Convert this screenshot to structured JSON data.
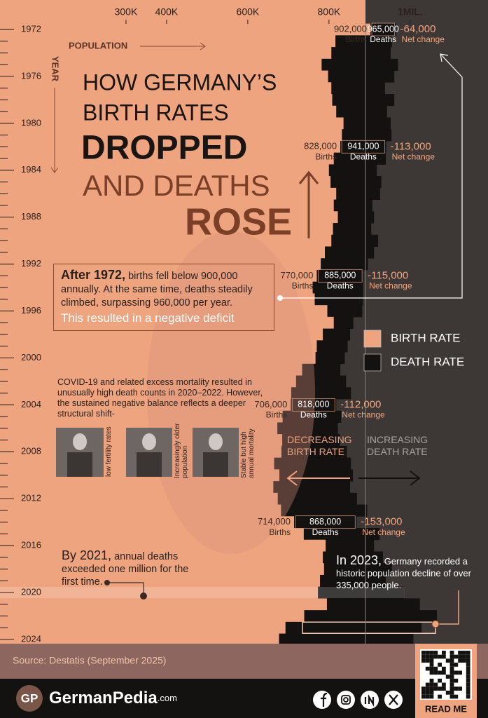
{
  "chart_data": {
    "type": "bar",
    "orientation": "horizontal",
    "title": [
      "HOW GERMANY’S",
      "BIRTH RATES",
      "DROPPED",
      "AND DEATHS",
      "ROSE"
    ],
    "x_label": "POPULATION",
    "y_label": "YEAR",
    "categories": [
      "1972",
      null,
      null,
      null,
      "1976",
      null,
      null,
      null,
      "1980",
      null,
      null,
      null,
      "1984",
      null,
      null,
      null,
      "1988",
      null,
      null,
      null,
      "1992",
      null,
      null,
      null,
      "1996",
      null,
      null,
      null,
      "2000",
      null,
      null,
      null,
      "2004",
      null,
      null,
      null,
      "2008",
      null,
      null,
      null,
      "2012",
      null,
      null,
      null,
      "2016",
      null,
      null,
      null,
      "2020",
      null,
      null,
      null,
      "2024"
    ],
    "xlim": [
      0,
      1190000
    ],
    "xticks": [
      {
        "value": 300000,
        "label": "300K"
      },
      {
        "value": 400000,
        "label": "400K"
      },
      {
        "value": 600000,
        "label": "600K"
      },
      {
        "value": 800000,
        "label": "800K"
      },
      {
        "value": 1000000,
        "label": "1MIL."
      }
    ],
    "series": [
      {
        "name": "BIRTH RATE",
        "unit_label": "Births",
        "color": "#eea47f",
        "values": [
          902000,
          816000,
          806000,
          782000,
          798000,
          806000,
          808000,
          818000,
          836000,
          832000,
          828000,
          812000,
          800000,
          804000,
          818000,
          812000,
          822000,
          810000,
          806000,
          790000,
          780000,
          770000,
          760000,
          765000,
          796000,
          812000,
          785000,
          770000,
          767000,
          734000,
          719000,
          707000,
          706000,
          686000,
          673000,
          685000,
          683000,
          665000,
          678000,
          663000,
          674000,
          682000,
          714000,
          738000,
          792000,
          785000,
          788000,
          778000,
          773000,
          795000,
          739000,
          693000,
          677000
        ],
        "value_labels": [
          "902,000",
          null,
          null,
          null,
          null,
          null,
          null,
          null,
          null,
          null,
          "828,000",
          null,
          null,
          null,
          null,
          null,
          null,
          null,
          null,
          null,
          null,
          "770,000",
          null,
          null,
          null,
          null,
          null,
          null,
          null,
          null,
          null,
          null,
          "706,000",
          null,
          null,
          null,
          null,
          null,
          null,
          null,
          null,
          null,
          "714,000",
          null,
          null,
          null,
          null,
          null,
          null,
          null,
          null,
          null,
          null
        ]
      },
      {
        "name": "DEATH RATE",
        "unit_label": "Deaths",
        "color": "#141111",
        "values": [
          965000,
          955000,
          952000,
          970000,
          961000,
          938000,
          961000,
          943000,
          952000,
          954000,
          941000,
          940000,
          918000,
          929000,
          926000,
          907000,
          911000,
          904000,
          921000,
          911000,
          896000,
          885000,
          884000,
          884000,
          882000,
          860000,
          852000,
          846000,
          839000,
          828000,
          842000,
          854000,
          818000,
          830000,
          822000,
          827000,
          844000,
          854000,
          859000,
          852000,
          869000,
          894000,
          868000,
          925000,
          911000,
          933000,
          955000,
          940000,
          986000,
          1024000,
          1066000,
          1028000,
          1008000
        ],
        "value_labels": [
          "965,000",
          null,
          null,
          null,
          null,
          null,
          null,
          null,
          null,
          null,
          "941,000",
          null,
          null,
          null,
          null,
          null,
          null,
          null,
          null,
          null,
          null,
          "885,000",
          null,
          null,
          null,
          null,
          null,
          null,
          null,
          null,
          null,
          null,
          "818,000",
          null,
          null,
          null,
          null,
          null,
          null,
          null,
          null,
          null,
          "868,000",
          null,
          null,
          null,
          null,
          null,
          null,
          null,
          null,
          null,
          null
        ]
      },
      {
        "name": "Net change",
        "color": "#f3a67f",
        "values": [
          -64000,
          null,
          null,
          null,
          null,
          null,
          null,
          null,
          null,
          null,
          -113000,
          null,
          null,
          null,
          null,
          null,
          null,
          null,
          null,
          null,
          null,
          -115000,
          null,
          null,
          null,
          null,
          null,
          null,
          null,
          null,
          null,
          null,
          -112000,
          null,
          null,
          null,
          null,
          null,
          null,
          null,
          null,
          null,
          -153000,
          null,
          null,
          null,
          null,
          null,
          null,
          null,
          null,
          null,
          null
        ],
        "value_labels": [
          "-64,000",
          null,
          null,
          null,
          null,
          null,
          null,
          null,
          null,
          null,
          "-113,000",
          null,
          null,
          null,
          null,
          null,
          null,
          null,
          null,
          null,
          null,
          "-115,000",
          null,
          null,
          null,
          null,
          null,
          null,
          null,
          null,
          null,
          null,
          "-112,000",
          null,
          null,
          null,
          null,
          null,
          null,
          null,
          null,
          null,
          "-153,000",
          null,
          null,
          null,
          null,
          null,
          null,
          null,
          null,
          null,
          null
        ]
      }
    ],
    "legend": "right",
    "arrows": {
      "left": "DECREASING BIRTH RATE",
      "right": "INCREASING DEATH RATE"
    }
  },
  "summary": {
    "lead": "After 1972,",
    "body": "births fell below 900,000 annually. At the same time, deaths steadily climbed, surpassing 960,000 per year.",
    "highlight": "This resulted in a negative deficit"
  },
  "covid_note": "COVID-19 and related excess mortality resulted in unusually high death counts in 2020–2022. However, the sustained negative balance reflects a deeper structural shift-",
  "photos": [
    "low fertility rates",
    "Increasingly older population",
    "Stable but high annual mortality"
  ],
  "note_2021": {
    "lead": "By 2021,",
    "body": "annual deaths exceeded one million for the first time."
  },
  "note_2023": {
    "lead": "In 2023,",
    "body": "Germany recorded a historic population decline of over 335,000 people."
  },
  "footer": {
    "source": "Source: Destatis (September 2025)",
    "logo": "GP",
    "brand": "GermanPedia",
    "domain": ".com",
    "read_me": "READ ME"
  }
}
